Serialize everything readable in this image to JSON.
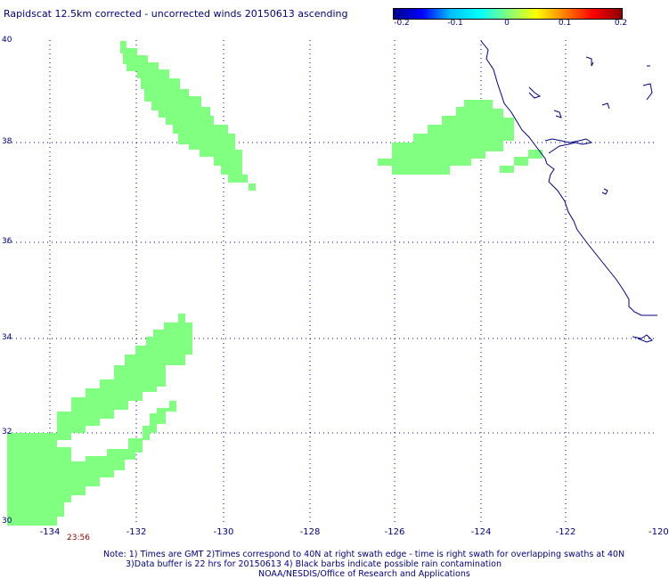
{
  "title": "Rapidscat 12.5km corrected - uncorrected winds 20150613 ascending",
  "colorbar": {
    "colors": [
      "#00008b",
      "#0000ff",
      "#00bfff",
      "#00ffff",
      "#7fff7f",
      "#ffff00",
      "#ff7f00",
      "#ff0000",
      "#8b0000"
    ],
    "ticks": [
      "-0.2",
      "-0.1",
      "0",
      "0.1",
      "0.2"
    ]
  },
  "map": {
    "lat_labels": [
      "40",
      "38",
      "36",
      "34",
      "32",
      "30"
    ],
    "lon_labels": [
      "-134",
      "-132",
      "-130",
      "-128",
      "-126",
      "-124",
      "-122",
      "-120"
    ],
    "lat_range": [
      30,
      40
    ],
    "lon_range": [
      -135,
      -120
    ],
    "swath_color": "#80ff80",
    "coast_color": "#000080",
    "grid": "dotted"
  },
  "time_label": "23:56",
  "notes": {
    "line1": "Note: 1) Times are GMT 2)Times correspond to 40N at right swath edge - time is right swath for overlapping swaths at 40N",
    "line2": "3)Data buffer is 22 hrs for 20150613 4) Black barbs indicate possible rain contamination",
    "line3": "NOAA/NESDIS/Office of Research and Applications"
  }
}
